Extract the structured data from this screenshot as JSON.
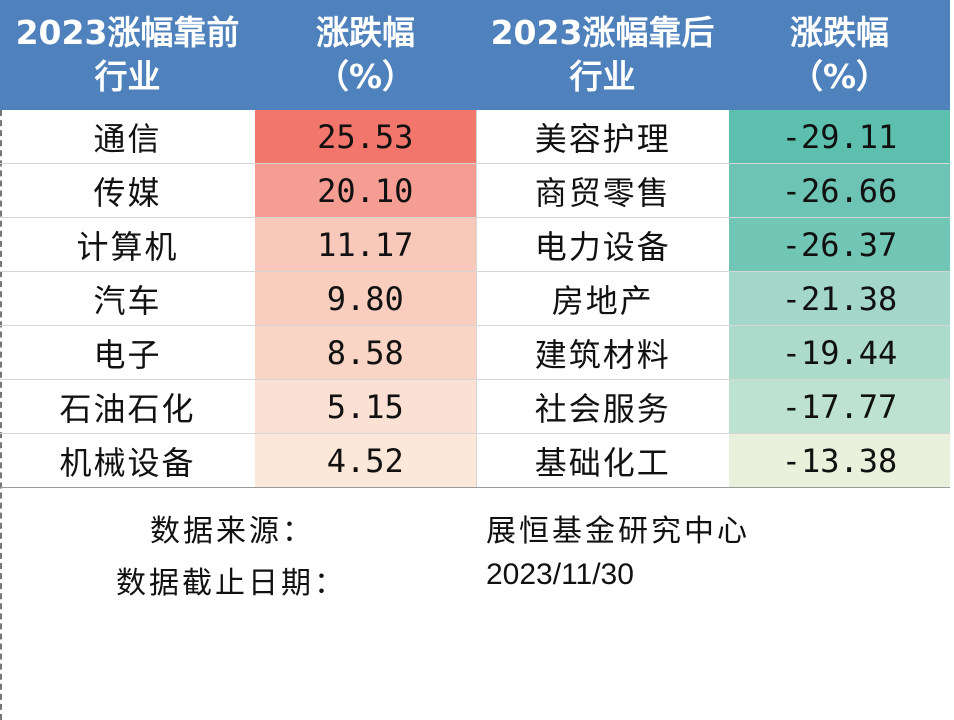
{
  "headers": {
    "top_industry": [
      "2023涨幅靠前",
      "行业"
    ],
    "top_change": [
      "涨跌幅",
      "（%）"
    ],
    "bottom_industry": [
      "2023涨幅靠后",
      "行业"
    ],
    "bottom_change": [
      "涨跌幅",
      "（%）"
    ]
  },
  "rows": [
    {
      "top_name": "通信",
      "top_value": "25.53",
      "bottom_name": "美容护理",
      "bottom_value": "-29.11"
    },
    {
      "top_name": "传媒",
      "top_value": "20.10",
      "bottom_name": "商贸零售",
      "bottom_value": "-26.66"
    },
    {
      "top_name": "计算机",
      "top_value": "11.17",
      "bottom_name": "电力设备",
      "bottom_value": "-26.37"
    },
    {
      "top_name": "汽车",
      "top_value": "9.80",
      "bottom_name": "房地产",
      "bottom_value": "-21.38"
    },
    {
      "top_name": "电子",
      "top_value": "8.58",
      "bottom_name": "建筑材料",
      "bottom_value": "-19.44"
    },
    {
      "top_name": "石油石化",
      "top_value": "5.15",
      "bottom_name": "社会服务",
      "bottom_value": "-17.77"
    },
    {
      "top_name": "机械设备",
      "top_value": "4.52",
      "bottom_name": "基础化工",
      "bottom_value": "-13.38"
    }
  ],
  "colors": {
    "header_bg": "#4f81bd",
    "top_values_bg": [
      "#f3766d",
      "#f59d93",
      "#f8c8bb",
      "#f9cebf",
      "#fad5c6",
      "#fbe1d3",
      "#fbe8d8"
    ],
    "bottom_values_bg": [
      "#5dbfae",
      "#6dc4b4",
      "#72c6b6",
      "#a3d7c9",
      "#acdbcc",
      "#bde2d2",
      "#e9f1dc"
    ]
  },
  "footer": {
    "source_label": "数据来源：",
    "source_value": "展恒基金研究中心",
    "date_label": "数据截止日期：",
    "date_value": "2023/11/30"
  }
}
